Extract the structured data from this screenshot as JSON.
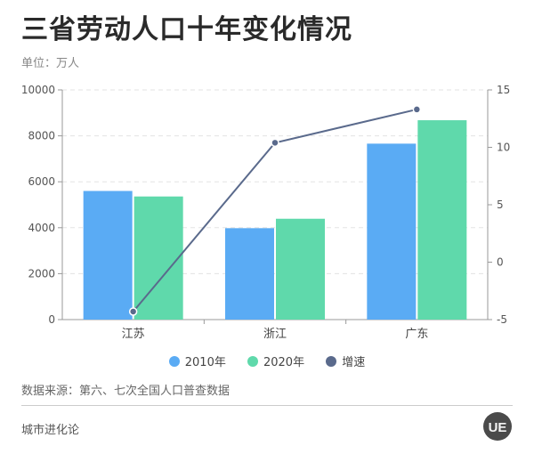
{
  "title": "三省劳动人口十年变化情况",
  "unit_label": "单位：万人",
  "source": "数据来源：第六、七次全国人口普查数据",
  "brand": "城市进化论",
  "logo_text": "UE",
  "colors": {
    "series_2010": "#5aabf4",
    "series_2020": "#5fd9ab",
    "growth": "#5a6a8c",
    "grid": "#e3e3e3",
    "axis": "#999999"
  },
  "chart_data": {
    "type": "bar",
    "categories": [
      "江苏",
      "浙江",
      "广东"
    ],
    "series": [
      {
        "name": "2010年",
        "type": "bar",
        "axis": "left",
        "values": [
          5600,
          3980,
          7660
        ]
      },
      {
        "name": "2020年",
        "type": "bar",
        "axis": "left",
        "values": [
          5360,
          4390,
          8680
        ]
      },
      {
        "name": "增速",
        "type": "line",
        "axis": "right",
        "values": [
          -4.3,
          10.4,
          13.3
        ]
      }
    ],
    "y_left": {
      "min": 0,
      "max": 10000,
      "ticks": [
        0,
        2000,
        4000,
        6000,
        8000,
        10000
      ]
    },
    "y_right": {
      "min": -5,
      "max": 15,
      "ticks": [
        -5,
        0,
        5,
        10,
        15
      ]
    },
    "grid": true,
    "legend_position": "bottom"
  }
}
